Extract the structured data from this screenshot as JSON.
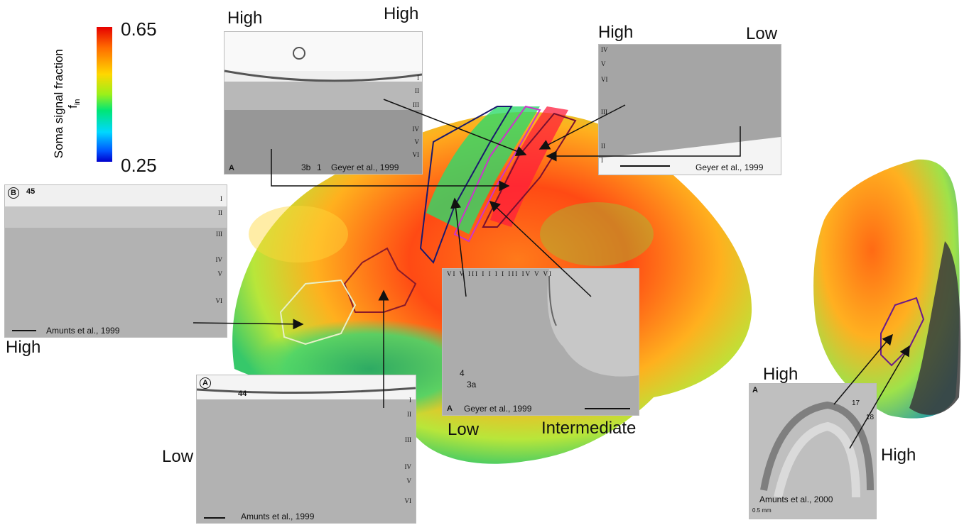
{
  "colorbar": {
    "title": "Soma signal fraction",
    "symbol": "f",
    "symbol_sub": "in",
    "max": "0.65",
    "min": "0.25"
  },
  "labels": {
    "top_left_high": "High",
    "top_mid_high": "High",
    "top_right_high": "High",
    "top_right_low": "Low",
    "left_high": "High",
    "bottom_left_low": "Low",
    "center_low": "Low",
    "center_intermediate": "Intermediate",
    "right_high_top": "High",
    "right_high_bottom": "High"
  },
  "panels": {
    "area3b": {
      "letter": "A",
      "citation": "Geyer et al., 1999",
      "marks": [
        "3b",
        "1"
      ],
      "layers": [
        "I",
        "II",
        "III",
        "IV",
        "V",
        "VI"
      ]
    },
    "area4_top": {
      "citation": "Geyer et al., 1999",
      "layers": [
        "IV",
        "V",
        "VI",
        "III",
        "II",
        "I"
      ]
    },
    "area45": {
      "letter": "B",
      "area": "45",
      "citation": "Amunts et al., 1999",
      "layers": [
        "I",
        "II",
        "III",
        "IV",
        "V",
        "VI"
      ]
    },
    "area44": {
      "letter": "A",
      "area": "44",
      "citation": "Amunts et al., 1999",
      "layers": [
        "I",
        "II",
        "III",
        "IV",
        "V",
        "VI"
      ]
    },
    "sulcus": {
      "letter": "A",
      "citation": "Geyer et al., 1999",
      "marks": [
        "4",
        "3a"
      ],
      "layers_top": "VI  V  III  I I  I I  III  IV V VI"
    },
    "occipital": {
      "letter": "A",
      "citation": "Amunts et al., 2000",
      "marks": [
        "17",
        "18"
      ],
      "scale": "0.5 mm"
    }
  }
}
